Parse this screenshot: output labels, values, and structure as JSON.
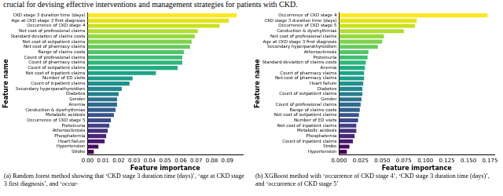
{
  "header": "crucial for devising effective interventions and management strategies for patients with CKD.",
  "chart_data": [
    {
      "type": "bar",
      "orientation": "horizontal",
      "grid": false,
      "caption": "(a) Random forest method showing that ‘CKD stage 3 duration time (days)’, ‘age at CKD stage 3 first diagnosis’, and ‘occur-",
      "x_label": "Feature importance",
      "y_label": "Feature name",
      "categories": [
        "CKD stage 3 duration time (days)",
        "Age at CKD stage 3 first diagnosis",
        "Occurrence of CKD stage 4",
        "Net cost of professional claims",
        "Standard deviation of claims costs",
        "Net cost of outpatient claims",
        "Net cost of pharmacy claims",
        "Range of claims costs",
        "Count of professional claims",
        "Count of pharmacy claims",
        "Count of outpatient claims",
        "Net cost of inpatient claims",
        "Number of ED visits",
        "Count of inpatient claims",
        "Secondary hyperparathyroidism",
        "Diabetes",
        "Gender",
        "Anemia",
        "Conduction & dysrhythmias",
        "Metabolic acidosis",
        "Occurrence of CKD stage 5",
        "Proteinuria",
        "Atherosclerosis",
        "Phosphatemia",
        "Heart failure",
        "Hypertension",
        "Stroke"
      ],
      "values": [
        0.096,
        0.091,
        0.085,
        0.071,
        0.069,
        0.067,
        0.066,
        0.062,
        0.061,
        0.061,
        0.058,
        0.044,
        0.029,
        0.027,
        0.022,
        0.02,
        0.019,
        0.019,
        0.018,
        0.017,
        0.015,
        0.014,
        0.013,
        0.012,
        0.011,
        0.007,
        0.004
      ],
      "colors": [
        "#fde725",
        "#e5e419",
        "#cae11f",
        "#b0dd2f",
        "#95d840",
        "#7fd34e",
        "#67cc5c",
        "#52c569",
        "#40bd72",
        "#31b57b",
        "#25ac82",
        "#1fa287",
        "#1e9b8a",
        "#21918c",
        "#24878e",
        "#277f8e",
        "#2c728e",
        "#306a8e",
        "#355f8d",
        "#3a548c",
        "#3e4989",
        "#423f85",
        "#46327e",
        "#482677",
        "#481a6c",
        "#470d60",
        "#440154"
      ],
      "xlim": [
        0,
        0.1
      ],
      "xticks": [
        {
          "value": 0,
          "label": "0.00"
        },
        {
          "value": 0.01,
          "label": "0.01"
        },
        {
          "value": 0.02,
          "label": "0.02"
        },
        {
          "value": 0.03,
          "label": "0.03"
        },
        {
          "value": 0.04,
          "label": "0.04"
        },
        {
          "value": 0.05,
          "label": "0.05"
        },
        {
          "value": 0.06,
          "label": "0.06"
        },
        {
          "value": 0.07,
          "label": "0.07"
        },
        {
          "value": 0.08,
          "label": "0.08"
        },
        {
          "value": 0.09,
          "label": "0.09"
        }
      ]
    },
    {
      "type": "bar",
      "orientation": "horizontal",
      "grid": false,
      "caption": "(b) XGBoost method with ‘occurrence of CKD stage 4’, ‘CKD stage 3 duration time (days)’, and ‘occurrence of CKD stage 5’",
      "x_label": "Feature importance",
      "y_label": "Feature name",
      "categories": [
        "Occurrence of CKD stage 4",
        "CKD stage 3 duration time (days)",
        "Occurrence of CKD stage 5",
        "Conduction & dysrhythmias",
        "Net cost of professional claims",
        "Age at CKD stage 3 first diagnosis",
        "Secondary hyperparathyroidism",
        "Atherosclerosis",
        "Proteinuria",
        "Standard deviation of claims costs",
        "Anemia",
        "Count of pharmacy claims",
        "Net cost of pharmacy claims",
        "Heart failure",
        "Diabetes",
        "Count of outpatient claims",
        "Gender",
        "Count of professional claims",
        "Range of claims costs",
        "Net cost of outpatient claims",
        "Number of ED visits",
        "Net cost of inpatient claims",
        "Metabolic acidosis",
        "Phosphatemia",
        "Count of inpatient claims",
        "Stroke",
        "Hypertension"
      ],
      "values": [
        0.172,
        0.09,
        0.088,
        0.075,
        0.052,
        0.05,
        0.045,
        0.034,
        0.033,
        0.031,
        0.03,
        0.029,
        0.029,
        0.028,
        0.027,
        0.027,
        0.026,
        0.025,
        0.024,
        0.023,
        0.022,
        0.02,
        0.02,
        0.018,
        0.016,
        0.012,
        0.009
      ],
      "colors": [
        "#fde725",
        "#e5e419",
        "#cae11f",
        "#b0dd2f",
        "#95d840",
        "#7fd34e",
        "#67cc5c",
        "#52c569",
        "#40bd72",
        "#31b57b",
        "#25ac82",
        "#1fa287",
        "#1e9b8a",
        "#21918c",
        "#24878e",
        "#277f8e",
        "#2c728e",
        "#306a8e",
        "#355f8d",
        "#3a548c",
        "#3e4989",
        "#423f85",
        "#46327e",
        "#482677",
        "#481a6c",
        "#470d60",
        "#440154"
      ],
      "xlim": [
        0,
        0.18
      ],
      "xticks": [
        {
          "value": 0,
          "label": "0.000"
        },
        {
          "value": 0.025,
          "label": "0.025"
        },
        {
          "value": 0.05,
          "label": "0.050"
        },
        {
          "value": 0.075,
          "label": "0.075"
        },
        {
          "value": 0.1,
          "label": "0.100"
        },
        {
          "value": 0.125,
          "label": "0.125"
        },
        {
          "value": 0.15,
          "label": "0.150"
        },
        {
          "value": 0.175,
          "label": "0.175"
        }
      ]
    }
  ]
}
